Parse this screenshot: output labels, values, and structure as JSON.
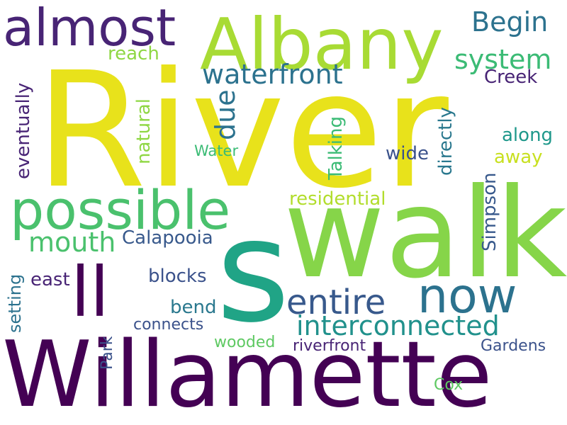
{
  "words": [
    {
      "text": "River",
      "color": "#e8e21b"
    },
    {
      "text": "walk",
      "color": "#86d549"
    },
    {
      "text": "Willamette",
      "color": "#440154"
    },
    {
      "text": "Albany",
      "color": "#a8db34"
    },
    {
      "text": "s",
      "color": "#20a486"
    },
    {
      "text": "possible",
      "color": "#4ac16d"
    },
    {
      "text": "almost",
      "color": "#482475"
    },
    {
      "text": "ll",
      "color": "#440154"
    },
    {
      "text": "now",
      "color": "#2c728e"
    },
    {
      "text": "waterfront",
      "color": "#2c728e"
    },
    {
      "text": "entire",
      "color": "#38598c"
    },
    {
      "text": "interconnected",
      "color": "#21918c"
    },
    {
      "text": "system",
      "color": "#3bbb75"
    },
    {
      "text": "Begin",
      "color": "#2c728e"
    },
    {
      "text": "mouth",
      "color": "#4ac16d"
    },
    {
      "text": "due",
      "color": "#2c728e"
    },
    {
      "text": "Calapooia",
      "color": "#38598c"
    },
    {
      "text": "residential",
      "color": "#b2dd2c"
    },
    {
      "text": "Simpson",
      "color": "#38598c"
    },
    {
      "text": "eventually",
      "color": "#482475"
    },
    {
      "text": "natural",
      "color": "#8fd744"
    },
    {
      "text": "Talking",
      "color": "#3bbb75"
    },
    {
      "text": "directly",
      "color": "#2a788e"
    },
    {
      "text": "reach",
      "color": "#8fd744"
    },
    {
      "text": "Creek",
      "color": "#482475"
    },
    {
      "text": "along",
      "color": "#1f988b"
    },
    {
      "text": "away",
      "color": "#c8e020"
    },
    {
      "text": "wide",
      "color": "#3b528b"
    },
    {
      "text": "Water",
      "color": "#3bbb75"
    },
    {
      "text": "blocks",
      "color": "#3b528b"
    },
    {
      "text": "east",
      "color": "#482475"
    },
    {
      "text": "bend",
      "color": "#2a788e"
    },
    {
      "text": "setting",
      "color": "#2c728e"
    },
    {
      "text": "connects",
      "color": "#3b528b"
    },
    {
      "text": "wooded",
      "color": "#5ec962"
    },
    {
      "text": "riverfront",
      "color": "#482475"
    },
    {
      "text": "Gardens",
      "color": "#3b528b"
    },
    {
      "text": "Park",
      "color": "#3b528b"
    },
    {
      "text": "Cox",
      "color": "#5ec962"
    }
  ]
}
